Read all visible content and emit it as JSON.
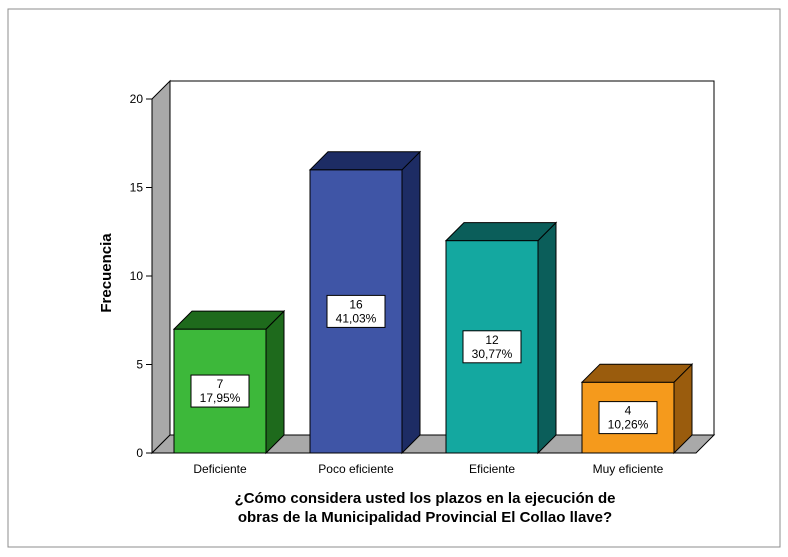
{
  "chart_data": {
    "type": "bar",
    "categories": [
      "Deficiente",
      "Poco eficiente",
      "Eficiente",
      "Muy eficiente"
    ],
    "values": [
      7,
      16,
      12,
      4
    ],
    "percent_labels": [
      "17,95%",
      "41,03%",
      "30,77%",
      "10,26%"
    ],
    "ylabel": "Frecuencia",
    "xlabel_lines": [
      "¿Cómo considera usted los plazos en la ejecución de",
      "obras de la Municipalidad Provincial El Collao llave?"
    ],
    "ylim": [
      0,
      20
    ],
    "yticks": [
      0,
      5,
      10,
      15,
      20
    ],
    "grid": false,
    "bar_style": "3d",
    "colors": [
      "#3db83a",
      "#3f55a6",
      "#14a8a0",
      "#f59a1c"
    ],
    "dark_colors": [
      "#1e6a1c",
      "#1d2c64",
      "#0b5e5a",
      "#9a5c0d"
    ],
    "frame_color": "#a9a9a9"
  }
}
